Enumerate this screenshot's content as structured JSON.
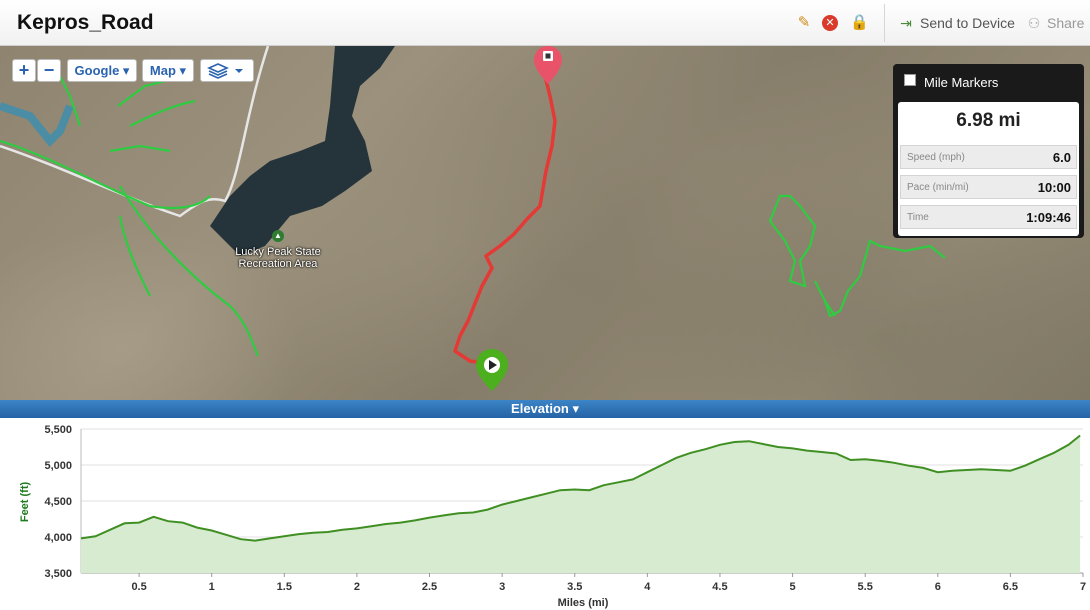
{
  "header": {
    "title": "Kepros_Road",
    "send_label": "Send to Device",
    "share_label": "Share"
  },
  "map_controls": {
    "zoom_in": "+",
    "zoom_out": "−",
    "provider_label": "Google ▾",
    "maptype_label": "Map ▾"
  },
  "map": {
    "place_label": "Lucky Peak State Recreation Area"
  },
  "stats": {
    "mile_markers_label": "Mile Markers",
    "distance": "6.98 mi",
    "rows": [
      {
        "label": "Speed (mph)",
        "value": "6.0"
      },
      {
        "label": "Pace (min/mi)",
        "value": "10:00"
      },
      {
        "label": "Time",
        "value": "1:09:46"
      }
    ]
  },
  "elevation": {
    "title": "Elevation ▾"
  },
  "chart_data": {
    "type": "area",
    "xlabel": "Miles (mi)",
    "ylabel": "Feet (ft)",
    "xlim": [
      0.1,
      7.0
    ],
    "ylim": [
      3500,
      5500
    ],
    "xticks": [
      "0.5",
      "1",
      "1.5",
      "2",
      "2.5",
      "3",
      "3.5",
      "4",
      "4.5",
      "5",
      "5.5",
      "6",
      "6.5",
      "7"
    ],
    "yticks": [
      "3,500",
      "4,000",
      "4,500",
      "5,000",
      "5,500"
    ],
    "x": [
      0.1,
      0.2,
      0.3,
      0.4,
      0.5,
      0.6,
      0.7,
      0.8,
      0.9,
      1.0,
      1.1,
      1.2,
      1.3,
      1.4,
      1.5,
      1.6,
      1.7,
      1.8,
      1.9,
      2.0,
      2.1,
      2.2,
      2.3,
      2.4,
      2.5,
      2.6,
      2.7,
      2.8,
      2.9,
      3.0,
      3.1,
      3.2,
      3.3,
      3.4,
      3.5,
      3.6,
      3.7,
      3.8,
      3.9,
      4.0,
      4.1,
      4.2,
      4.3,
      4.4,
      4.5,
      4.6,
      4.7,
      4.8,
      4.9,
      5.0,
      5.1,
      5.2,
      5.3,
      5.4,
      5.5,
      5.6,
      5.7,
      5.8,
      5.9,
      6.0,
      6.1,
      6.2,
      6.3,
      6.4,
      6.5,
      6.6,
      6.7,
      6.8,
      6.9,
      6.98
    ],
    "y": [
      3980,
      4010,
      4100,
      4190,
      4200,
      4280,
      4220,
      4200,
      4130,
      4090,
      4030,
      3970,
      3950,
      3980,
      4010,
      4040,
      4060,
      4070,
      4100,
      4120,
      4150,
      4180,
      4200,
      4230,
      4270,
      4300,
      4330,
      4340,
      4380,
      4450,
      4500,
      4550,
      4600,
      4650,
      4660,
      4650,
      4720,
      4760,
      4800,
      4900,
      5000,
      5100,
      5170,
      5220,
      5280,
      5320,
      5330,
      5290,
      5250,
      5230,
      5200,
      5180,
      5160,
      5070,
      5080,
      5060,
      5030,
      4990,
      4960,
      4900,
      4920,
      4930,
      4940,
      4930,
      4920,
      4990,
      5080,
      5170,
      5280,
      5410
    ]
  }
}
